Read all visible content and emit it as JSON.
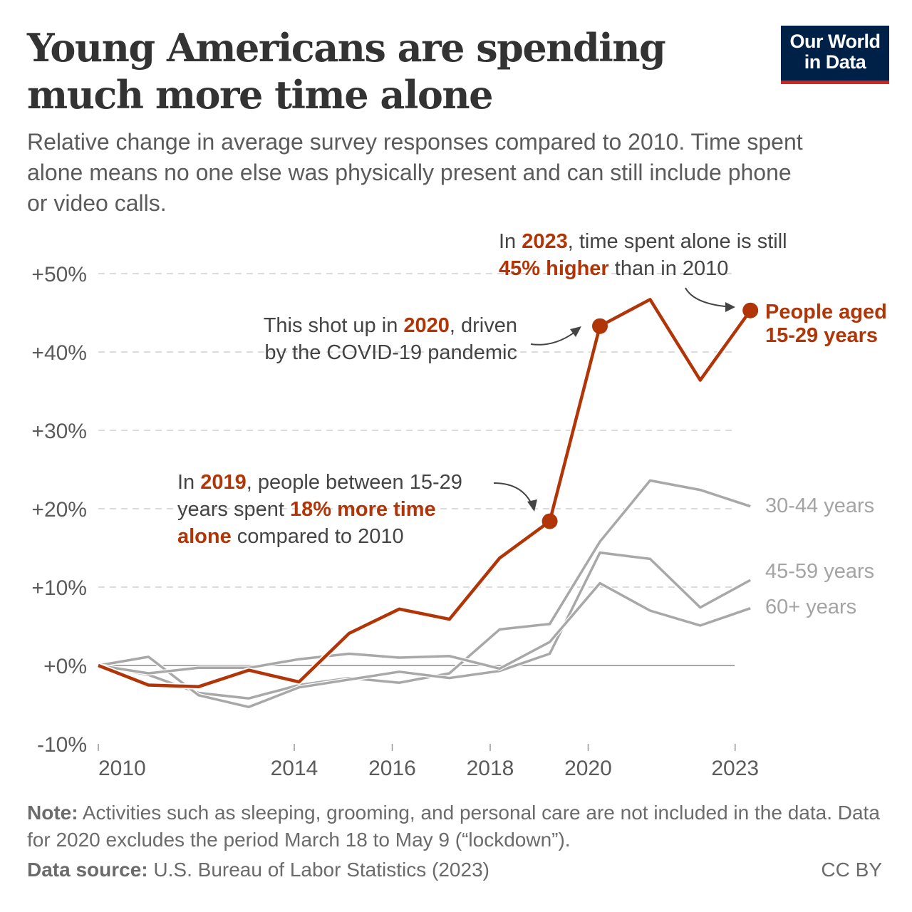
{
  "title": "Young Americans are spending much more time alone",
  "subtitle": "Relative change in average survey responses compared to 2010. Time spent alone means no one else was physically present and can still include phone or video calls.",
  "logo": {
    "line1": "Our World",
    "line2": "in Data"
  },
  "annotations": {
    "a2023": {
      "p1": "In ",
      "b1": "2023",
      "p2": ", time spent alone is still ",
      "b2": "45% higher",
      "p3": " than in 2010"
    },
    "a2020": {
      "p1": "This shot up in ",
      "b1": "2020",
      "p2": ", driven by the COVID-19 pandemic"
    },
    "a2019": {
      "p1": "In ",
      "b1": "2019",
      "p2": ", people between 15-29 years spent ",
      "b2": "18% more time alone",
      "p3": " compared to 2010"
    }
  },
  "note": {
    "label": "Note:",
    "text": " Activities such as sleeping, grooming, and personal care are not included in the data. Data for 2020 excludes the period March 18 to May 9 (“lockdown”)."
  },
  "source": {
    "label": "Data source:",
    "text": " U.S. Bureau of Labor Statistics (2023)"
  },
  "license": "CC BY",
  "colors": {
    "accent": "#b13507",
    "gray": "#a8a8a8",
    "logo_bg": "#002147",
    "logo_bar": "#ce261e"
  },
  "chart_data": {
    "type": "line",
    "x": [
      2010,
      2011,
      2012,
      2013,
      2014,
      2015,
      2016,
      2017,
      2018,
      2019,
      2020,
      2021,
      2022,
      2023
    ],
    "ylim": [
      -10,
      50
    ],
    "yticks": [
      -10,
      0,
      10,
      20,
      30,
      40,
      50
    ],
    "ytick_labels": [
      "-10%",
      "+0%",
      "+10%",
      "+20%",
      "+30%",
      "+40%",
      "+50%"
    ],
    "xticks": [
      2010,
      2014,
      2016,
      2018,
      2020,
      2023
    ],
    "xtick_labels": [
      "2010",
      "2014",
      "2016",
      "2018",
      "2020",
      "2023"
    ],
    "grid": true,
    "series": [
      {
        "name": "30-44 years",
        "color": "#a8a8a8",
        "values": [
          0,
          -1.2,
          -3.5,
          -4.2,
          -2.5,
          -1.6,
          -2.2,
          -1.0,
          4.6,
          5.3,
          15.8,
          23.6,
          22.4,
          20.3
        ]
      },
      {
        "name": "45-59 years",
        "color": "#a8a8a8",
        "values": [
          0,
          1.1,
          -3.8,
          -5.3,
          -2.8,
          -1.8,
          -0.8,
          -1.6,
          -0.7,
          1.5,
          14.4,
          13.6,
          7.4,
          10.9
        ]
      },
      {
        "name": "60+ years",
        "color": "#a8a8a8",
        "values": [
          0,
          -1.0,
          -0.3,
          -0.3,
          0.8,
          1.5,
          1.0,
          1.2,
          -0.4,
          3.0,
          10.5,
          7.0,
          5.1,
          7.3
        ]
      },
      {
        "name": "People aged 15-29 years",
        "color": "#b13507",
        "values": [
          0,
          -2.5,
          -2.7,
          -0.6,
          -2.1,
          4.1,
          7.2,
          5.9,
          13.7,
          18.4,
          43.3,
          46.7,
          36.4,
          45.3
        ],
        "markers": [
          2019,
          2020,
          2023
        ]
      }
    ]
  }
}
